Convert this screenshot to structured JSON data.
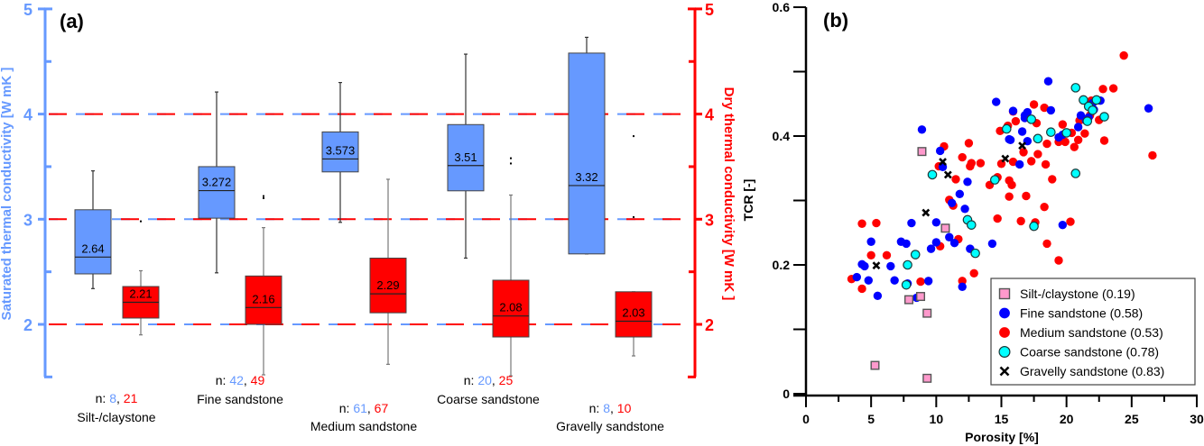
{
  "chart_data": [
    {
      "type": "box",
      "panel_label": "(a)",
      "title": "",
      "ylabel_left": "Saturated  thermal conductivity [W mK  ]",
      "ylabel_right": "Dry  thermal conductivity [W mK  ]",
      "ylim": [
        1.5,
        5
      ],
      "yticks": [
        "2",
        "3",
        "4",
        "5"
      ],
      "reference_lines": [
        2,
        3,
        4
      ],
      "colors": {
        "saturated": "#6699ff",
        "dry": "#ff0000",
        "left_axis": "#6699ff",
        "right_axis": "#ff0000"
      },
      "categories": [
        {
          "name": "Silt-/claystone",
          "n_sat": "8",
          "n_dry": "21",
          "saturated": {
            "whisker_low": 2.34,
            "q1": 2.48,
            "median": 2.64,
            "q3": 3.09,
            "whisker_high": 3.46,
            "median_label": "2.64",
            "outliers": [
              2.98
            ]
          },
          "dry": {
            "whisker_low": 1.9,
            "q1": 2.06,
            "median": 2.21,
            "q3": 2.36,
            "whisker_high": 2.51,
            "median_label": "2.21",
            "outliers": []
          }
        },
        {
          "name": "Fine sandstone",
          "n_sat": "42",
          "n_dry": "49",
          "saturated": {
            "whisker_low": 2.49,
            "q1": 3.01,
            "median": 3.272,
            "q3": 3.5,
            "whisker_high": 4.21,
            "median_label": "3.272",
            "outliers": [
              3.2,
              3.22
            ]
          },
          "dry": {
            "whisker_low": 1.52,
            "q1": 2.0,
            "median": 2.16,
            "q3": 2.46,
            "whisker_high": 2.92,
            "median_label": "2.16",
            "outliers": []
          }
        },
        {
          "name": "Medium sandstone",
          "n_sat": "61",
          "n_dry": "67",
          "saturated": {
            "whisker_low": 2.97,
            "q1": 3.45,
            "median": 3.573,
            "q3": 3.83,
            "whisker_high": 4.3,
            "median_label": "3.573",
            "outliers": []
          },
          "dry": {
            "whisker_low": 1.62,
            "q1": 2.11,
            "median": 2.29,
            "q3": 2.63,
            "whisker_high": 3.38,
            "median_label": "2.29",
            "outliers": []
          }
        },
        {
          "name": "Coarse sandstone",
          "n_sat": "20",
          "n_dry": "25",
          "saturated": {
            "whisker_low": 2.63,
            "q1": 3.27,
            "median": 3.51,
            "q3": 3.9,
            "whisker_high": 4.57,
            "median_label": "3.51",
            "outliers": [
              3.53,
              3.58
            ]
          },
          "dry": {
            "whisker_low": 1.51,
            "q1": 1.88,
            "median": 2.08,
            "q3": 2.42,
            "whisker_high": 3.23,
            "median_label": "2.08",
            "outliers": []
          }
        },
        {
          "name": "Gravelly sandstone",
          "n_sat": "8",
          "n_dry": "10",
          "saturated": {
            "whisker_low": 2.67,
            "q1": 2.67,
            "median": 3.32,
            "q3": 4.58,
            "whisker_high": 4.73,
            "median_label": "3.32",
            "outliers": [
              3.02,
              3.79
            ]
          },
          "dry": {
            "whisker_low": 1.7,
            "q1": 1.88,
            "median": 2.03,
            "q3": 2.31,
            "whisker_high": 2.31,
            "median_label": "2.03",
            "outliers": []
          }
        }
      ]
    },
    {
      "type": "scatter",
      "panel_label": "(b)",
      "title": "",
      "xlabel": "Porosity [%]",
      "ylabel": "TCR [-]",
      "xlim": [
        0,
        30
      ],
      "ylim": [
        0,
        0.6
      ],
      "xticks": [
        "0",
        "5",
        "10",
        "15",
        "20",
        "25",
        "30"
      ],
      "yticks": [
        "0",
        "0.2",
        "0.4",
        "0.6"
      ],
      "legend_position": "bottom-right",
      "series": [
        {
          "name": "Silt-/claystone (0.19)",
          "marker": "square",
          "color": "#ff99cc",
          "points": [
            [
              8.9,
              0.376
            ],
            [
              10.7,
              0.257
            ],
            [
              7.9,
              0.146
            ],
            [
              8.8,
              0.151
            ],
            [
              9.3,
              0.125
            ],
            [
              5.3,
              0.044
            ],
            [
              9.3,
              0.024
            ]
          ]
        },
        {
          "name": "Fine sandstone (0.58)",
          "marker": "circle",
          "color": "#0000ff",
          "points": [
            [
              8.9,
              0.41
            ],
            [
              10.3,
              0.377
            ],
            [
              10.5,
              0.352
            ],
            [
              12.4,
              0.329
            ],
            [
              11.8,
              0.31
            ],
            [
              11.2,
              0.296
            ],
            [
              12.2,
              0.287
            ],
            [
              10.0,
              0.266
            ],
            [
              11.0,
              0.243
            ],
            [
              11.4,
              0.234
            ],
            [
              12.6,
              0.225
            ],
            [
              12.0,
              0.166
            ],
            [
              5.0,
              0.236
            ],
            [
              4.3,
              0.201
            ],
            [
              4.5,
              0.198
            ],
            [
              5.5,
              0.152
            ],
            [
              6.5,
              0.198
            ],
            [
              7.7,
              0.233
            ],
            [
              7.8,
              0.171
            ],
            [
              8.1,
              0.265
            ],
            [
              8.5,
              0.149
            ],
            [
              9.6,
              0.225
            ],
            [
              9.4,
              0.175
            ],
            [
              10.0,
              0.235
            ],
            [
              14.6,
              0.453
            ],
            [
              15.9,
              0.439
            ],
            [
              18.6,
              0.485
            ],
            [
              17.0,
              0.437
            ],
            [
              18.8,
              0.44
            ],
            [
              19.4,
              0.398
            ],
            [
              15.7,
              0.394
            ],
            [
              16.6,
              0.407
            ],
            [
              16.8,
              0.428
            ],
            [
              17.0,
              0.392
            ],
            [
              19.7,
              0.402
            ],
            [
              21.7,
              0.429
            ],
            [
              22.0,
              0.451
            ],
            [
              22.1,
              0.441
            ],
            [
              21.1,
              0.432
            ],
            [
              21.5,
              0.424
            ],
            [
              22.6,
              0.455
            ],
            [
              20.9,
              0.414
            ],
            [
              26.3,
              0.443
            ],
            [
              19.7,
              0.262
            ],
            [
              16.4,
              0.356
            ],
            [
              14.3,
              0.233
            ],
            [
              16.8,
              0.432
            ],
            [
              15.6,
              0.395
            ],
            [
              4.8,
              0.176
            ],
            [
              6.8,
              0.176
            ],
            [
              7.3,
              0.236
            ],
            [
              3.9,
              0.181
            ]
          ]
        },
        {
          "name": "Medium sandstone (0.53)",
          "marker": "circle",
          "color": "#ff0000",
          "points": [
            [
              24.4,
              0.525
            ],
            [
              23.6,
              0.474
            ],
            [
              26.6,
              0.37
            ],
            [
              22.8,
              0.473
            ],
            [
              21.9,
              0.455
            ],
            [
              21.8,
              0.432
            ],
            [
              22.9,
              0.393
            ],
            [
              20.4,
              0.405
            ],
            [
              18.3,
              0.444
            ],
            [
              17.5,
              0.449
            ],
            [
              17.7,
              0.42
            ],
            [
              15.9,
              0.438
            ],
            [
              15.5,
              0.416
            ],
            [
              14.9,
              0.408
            ],
            [
              16.1,
              0.423
            ],
            [
              19.7,
              0.418
            ],
            [
              19.4,
              0.391
            ],
            [
              20.6,
              0.383
            ],
            [
              21.0,
              0.424
            ],
            [
              19.9,
              0.391
            ],
            [
              15.9,
              0.36
            ],
            [
              16.7,
              0.375
            ],
            [
              17.3,
              0.361
            ],
            [
              17.8,
              0.372
            ],
            [
              18.4,
              0.356
            ],
            [
              18.9,
              0.333
            ],
            [
              15.0,
              0.357
            ],
            [
              14.7,
              0.336
            ],
            [
              14.1,
              0.324
            ],
            [
              13.4,
              0.358
            ],
            [
              12.5,
              0.389
            ],
            [
              12.0,
              0.367
            ],
            [
              12.7,
              0.358
            ],
            [
              12.6,
              0.353
            ],
            [
              11.5,
              0.333
            ],
            [
              11.3,
              0.292
            ],
            [
              10.6,
              0.384
            ],
            [
              10.2,
              0.353
            ],
            [
              11.0,
              0.301
            ],
            [
              14.7,
              0.272
            ],
            [
              15.6,
              0.331
            ],
            [
              15.6,
              0.306
            ],
            [
              16.9,
              0.307
            ],
            [
              18.3,
              0.29
            ],
            [
              17.6,
              0.266
            ],
            [
              16.5,
              0.268
            ],
            [
              15.8,
              0.324
            ],
            [
              18.5,
              0.233
            ],
            [
              19.4,
              0.207
            ],
            [
              12.9,
              0.187
            ],
            [
              4.3,
              0.264
            ],
            [
              5.4,
              0.265
            ],
            [
              5.0,
              0.215
            ],
            [
              3.5,
              0.178
            ],
            [
              4.3,
              0.163
            ],
            [
              6.2,
              0.215
            ],
            [
              8.8,
              0.174
            ],
            [
              10.3,
              0.229
            ],
            [
              12.0,
              0.175
            ],
            [
              12.4,
              0.269
            ],
            [
              11.7,
              0.24
            ],
            [
              20.3,
              0.267
            ],
            [
              20.9,
              0.394
            ],
            [
              22.5,
              0.425
            ],
            [
              21.4,
              0.404
            ],
            [
              18.5,
              0.388
            ]
          ]
        },
        {
          "name": "Coarse sandstone (0.78)",
          "marker": "circle",
          "color": "#00ffff",
          "points": [
            [
              20.7,
              0.475
            ],
            [
              21.3,
              0.456
            ],
            [
              21.7,
              0.446
            ],
            [
              22.0,
              0.44
            ],
            [
              22.3,
              0.456
            ],
            [
              22.9,
              0.43
            ],
            [
              21.6,
              0.423
            ],
            [
              17.3,
              0.426
            ],
            [
              18.8,
              0.406
            ],
            [
              17.8,
              0.396
            ],
            [
              20.0,
              0.405
            ],
            [
              15.4,
              0.411
            ],
            [
              14.5,
              0.332
            ],
            [
              20.7,
              0.342
            ],
            [
              12.4,
              0.27
            ],
            [
              12.7,
              0.262
            ],
            [
              17.5,
              0.26
            ],
            [
              13.0,
              0.218
            ],
            [
              7.7,
              0.169
            ],
            [
              8.4,
              0.216
            ],
            [
              9.7,
              0.34
            ],
            [
              7.8,
              0.2
            ]
          ]
        },
        {
          "name": "Gravelly sandstone (0.83)",
          "marker": "x",
          "color": "#000000",
          "points": [
            [
              10.5,
              0.36
            ],
            [
              10.9,
              0.34
            ],
            [
              9.2,
              0.281
            ],
            [
              5.4,
              0.199
            ],
            [
              15.3,
              0.365
            ],
            [
              16.6,
              0.385
            ]
          ]
        }
      ]
    }
  ]
}
